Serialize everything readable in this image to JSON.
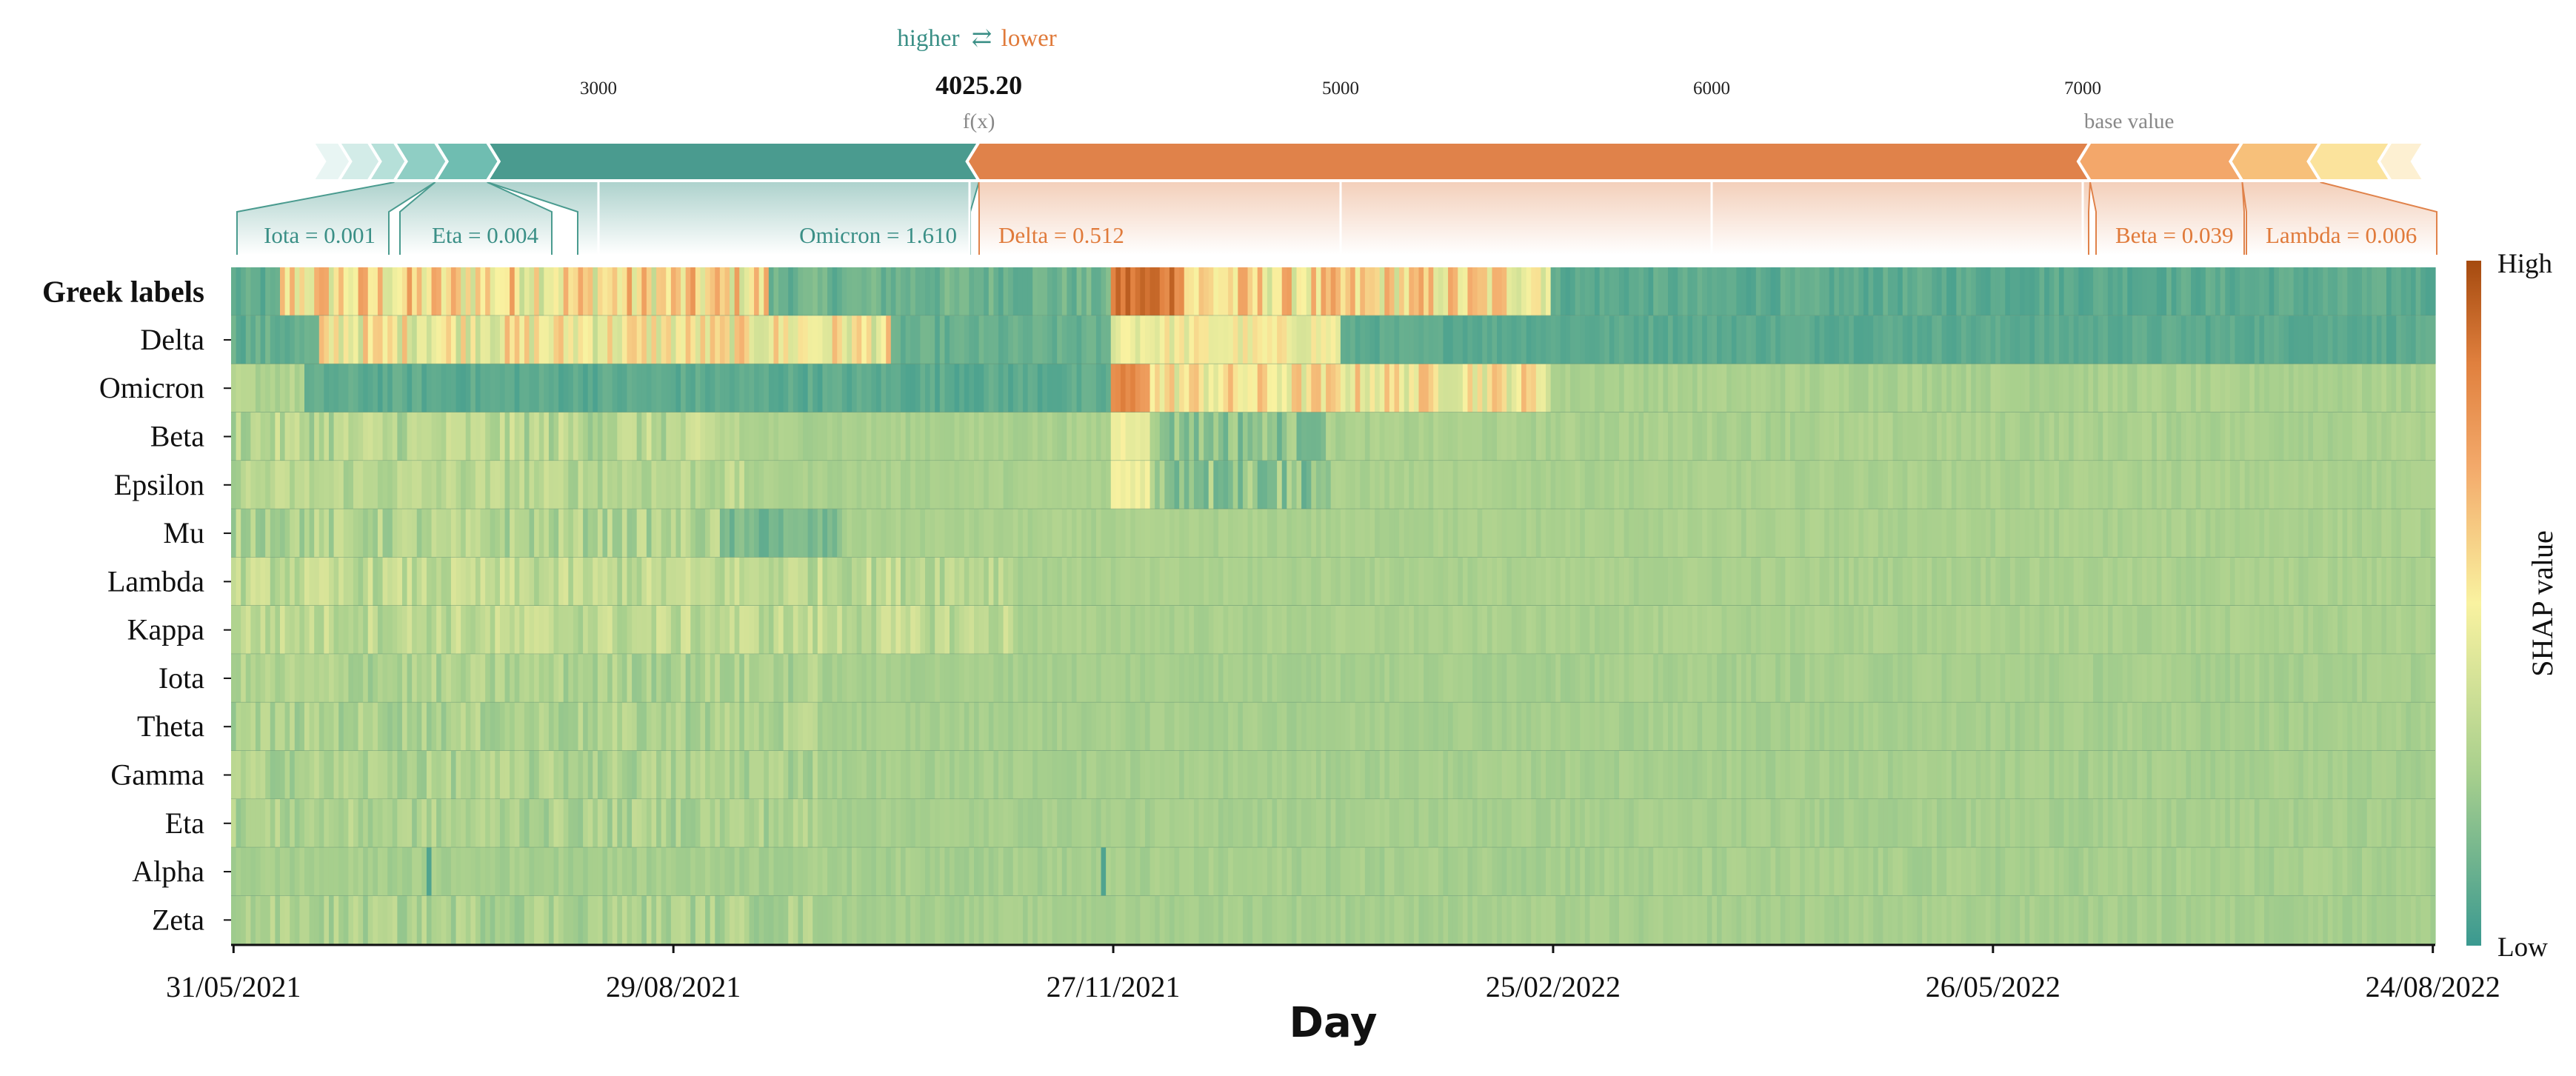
{
  "chart_data": {
    "type": "heatmap",
    "force_plot": {
      "direction_label": {
        "higher": "higher",
        "arrows": "⇄",
        "lower": "lower"
      },
      "axis_ticks": [
        3000,
        4000,
        5000,
        6000,
        7000
      ],
      "axis_tick_labels": [
        "3000",
        "5000",
        "6000",
        "7000"
      ],
      "fx_value": 4025.2,
      "fx_value_label": "4025.20",
      "fx_label": "f(x)",
      "base_value": 7125,
      "base_value_label": "base value",
      "axis_range": [
        1700,
        8500
      ],
      "positive_segments": [
        {
          "feature": "Omicron",
          "display": "Omicron = 1.610",
          "from": 2700,
          "to": 4025.2
        },
        {
          "feature": "Eta",
          "display": "Eta = 0.004",
          "from": 2560,
          "to": 2700
        },
        {
          "feature": "Iota",
          "display": "Iota = 0.001",
          "from": 2450,
          "to": 2560
        },
        {
          "feature": "other",
          "display": "",
          "from": 2380,
          "to": 2450
        },
        {
          "feature": "other",
          "display": "",
          "from": 2300,
          "to": 2380
        },
        {
          "feature": "other",
          "display": "",
          "from": 2230,
          "to": 2300
        }
      ],
      "negative_segments": [
        {
          "feature": "Delta",
          "display": "Delta = 0.512",
          "from": 4025.2,
          "to": 7020
        },
        {
          "feature": "Beta",
          "display": "Beta = 0.039",
          "from": 7020,
          "to": 7430
        },
        {
          "feature": "Lambda",
          "display": "Lambda = 0.006",
          "from": 7430,
          "to": 7640
        },
        {
          "feature": "other",
          "display": "",
          "from": 7640,
          "to": 7830
        },
        {
          "feature": "other",
          "display": "",
          "from": 7830,
          "to": 7920
        }
      ]
    },
    "heatmap": {
      "title_row_label": "Greek labels",
      "rows": [
        "Delta",
        "Omicron",
        "Beta",
        "Epsilon",
        "Mu",
        "Lambda",
        "Kappa",
        "Iota",
        "Theta",
        "Gamma",
        "Eta",
        "Alpha",
        "Zeta"
      ],
      "xlabel": "Day",
      "x_ticks": [
        "31/05/2021",
        "29/08/2021",
        "27/11/2021",
        "25/02/2022",
        "26/05/2022",
        "24/08/2022"
      ],
      "x_range": [
        "31/05/2021",
        "24/08/2022"
      ],
      "colorbar": {
        "label": "SHAP value",
        "high": "High",
        "low": "Low"
      },
      "colormap": [
        "#3a9990",
        "#a7cf8d",
        "#f9f2a0",
        "#f3a96a",
        "#e0803e",
        "#a54a0f"
      ],
      "regime_change_day": "27/11/2021",
      "approx_levels": {
        "Greek labels": "high (orange) 31/05/2021–27/11/2021 and 27/11/2021–Feb 2022, low (teal) afterwards",
        "Delta": "moderate-high until Oct 2021 and Nov 2021–Feb 2022, low (teal) afterwards",
        "Omicron": "low (teal) until 27/11/2021, high until Feb 2022, neutral after",
        "Beta": "neutral, slightly high just after 27/11/2021",
        "Epsilon": "neutral, high spike at 27/11/2021"
      }
    }
  }
}
